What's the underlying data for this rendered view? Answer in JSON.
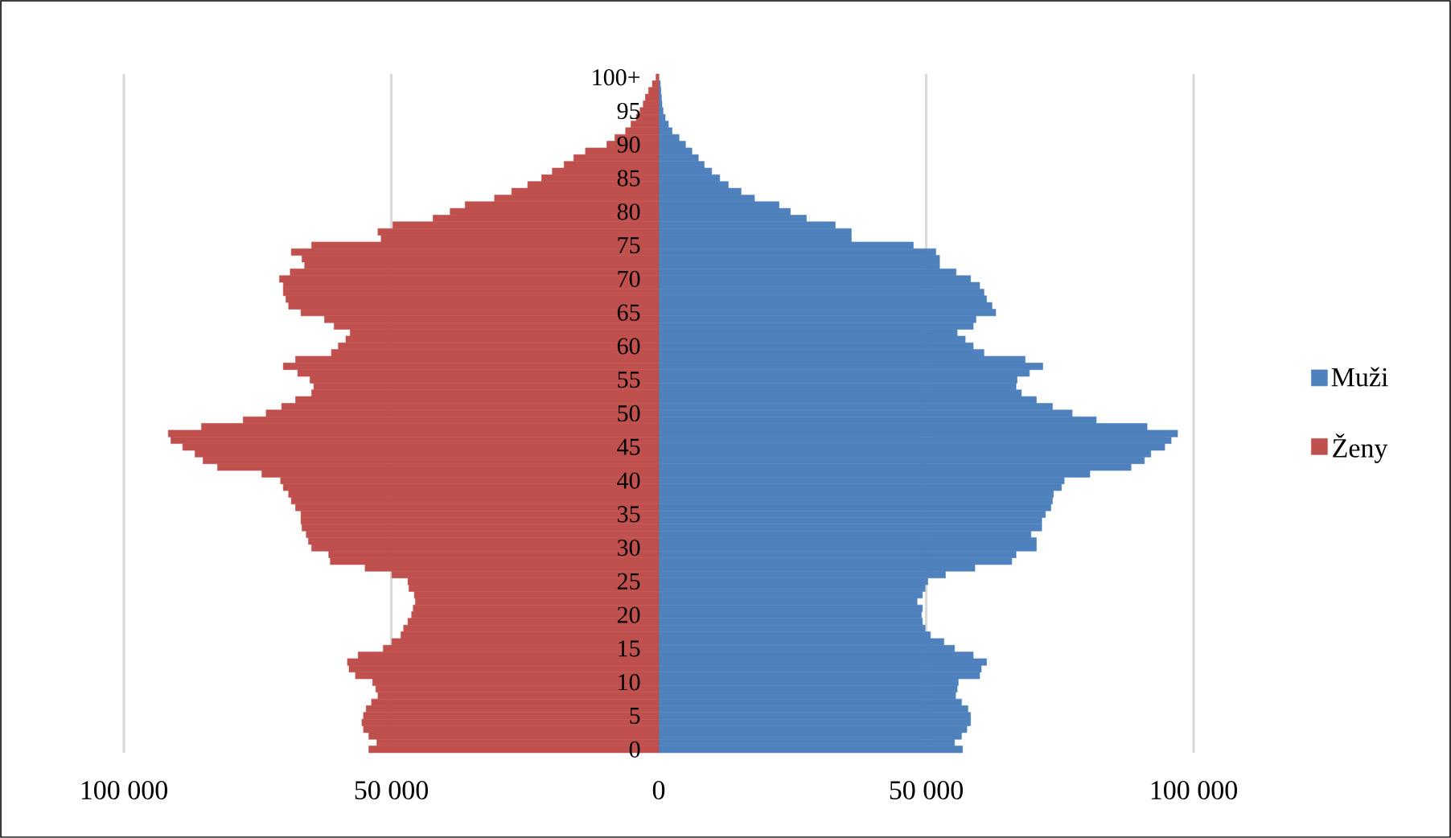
{
  "chart_data": {
    "type": "bar",
    "orientation": "horizontal",
    "categories": [
      "100+",
      null,
      null,
      null,
      null,
      "95",
      null,
      null,
      null,
      null,
      "90",
      null,
      null,
      null,
      null,
      "85",
      null,
      null,
      null,
      null,
      "80",
      null,
      null,
      null,
      null,
      "75",
      null,
      null,
      null,
      null,
      "70",
      null,
      null,
      null,
      null,
      "65",
      null,
      null,
      null,
      null,
      "60",
      null,
      null,
      null,
      null,
      "55",
      null,
      null,
      null,
      null,
      "50",
      null,
      null,
      null,
      null,
      "45",
      null,
      null,
      null,
      null,
      "40",
      null,
      null,
      null,
      null,
      "35",
      null,
      null,
      null,
      null,
      "30",
      null,
      null,
      null,
      null,
      "25",
      null,
      null,
      null,
      null,
      "20",
      null,
      null,
      null,
      null,
      "15",
      null,
      null,
      null,
      null,
      "10",
      null,
      null,
      null,
      null,
      "5",
      null,
      null,
      null,
      null,
      "0"
    ],
    "series": [
      {
        "name": "Muži",
        "color": "#4f81bd",
        "values": [
          null,
          300,
          400,
          500,
          600,
          800,
          1200,
          1800,
          2500,
          3800,
          5000,
          6200,
          7400,
          8500,
          9900,
          11400,
          13000,
          15400,
          17900,
          22500,
          24600,
          27600,
          33000,
          36000,
          36000,
          47600,
          51800,
          52500,
          52500,
          55600,
          58300,
          60000,
          60800,
          61300,
          62300,
          63000,
          59300,
          58800,
          55800,
          57300,
          58800,
          60800,
          68500,
          71800,
          69300,
          67000,
          66800,
          67800,
          70600,
          73600,
          77300,
          81800,
          91300,
          97000,
          95800,
          94600,
          92000,
          90800,
          88300,
          80600,
          75800,
          75300,
          73800,
          73600,
          73300,
          72300,
          71600,
          71600,
          69600,
          70600,
          70600,
          66800,
          66000,
          59100,
          53600,
          50300,
          49800,
          49300,
          48300,
          49300,
          49100,
          49300,
          49800,
          50800,
          53300,
          55300,
          58800,
          61300,
          60300,
          60000,
          56000,
          55800,
          55500,
          56600,
          57800,
          58300,
          58300,
          57600,
          56600,
          55300,
          56800
        ]
      },
      {
        "name": "Ženy",
        "color": "#c0504d",
        "values": [
          -500,
          -1200,
          -1900,
          -2500,
          -2900,
          -3500,
          -4200,
          -5200,
          -6200,
          -8200,
          -9700,
          -13700,
          -15900,
          -17700,
          -19900,
          -21900,
          -24500,
          -27500,
          -30700,
          -36200,
          -39000,
          -42200,
          -49700,
          -52500,
          -51900,
          -64900,
          -68700,
          -66700,
          -66200,
          -68900,
          -70900,
          -70200,
          -70200,
          -69700,
          -69200,
          -66900,
          -62500,
          -60700,
          -57700,
          -58500,
          -59900,
          -61200,
          -67900,
          -70200,
          -67500,
          -65200,
          -64500,
          -64900,
          -67900,
          -70500,
          -73400,
          -77700,
          -85500,
          -91700,
          -91200,
          -89000,
          -86700,
          -85200,
          -82500,
          -74200,
          -70700,
          -70200,
          -69200,
          -68700,
          -67900,
          -66900,
          -66900,
          -66700,
          -65900,
          -65500,
          -64900,
          -61700,
          -61400,
          -54900,
          -49900,
          -46900,
          -46700,
          -45700,
          -45500,
          -45900,
          -46200,
          -46900,
          -47700,
          -48200,
          -49900,
          -51500,
          -56200,
          -58200,
          -57900,
          -56700,
          -53500,
          -52900,
          -52500,
          -53700,
          -54700,
          -55200,
          -55500,
          -55200,
          -54200,
          -52700,
          -54200
        ]
      }
    ],
    "xlim": [
      -100000,
      100000
    ],
    "stacked": true,
    "xticks": [
      {
        "value": -100000,
        "label": "100 000"
      },
      {
        "value": -50000,
        "label": "50 000"
      },
      0,
      {
        "value": 50000,
        "label": "50 000"
      },
      {
        "value": 100000,
        "label": "100 000"
      }
    ],
    "grid": "x",
    "legend": "right"
  }
}
